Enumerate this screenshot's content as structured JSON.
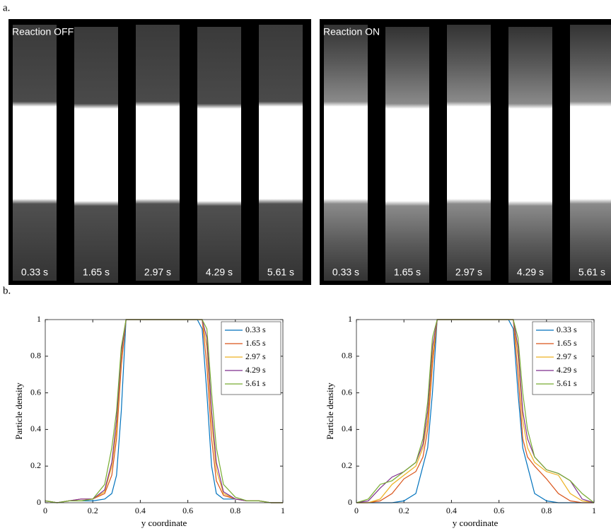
{
  "panel_labels": [
    "a.",
    "b."
  ],
  "images": [
    {
      "title": "Reaction OFF",
      "times": [
        "0.33 s",
        "1.65 s",
        "2.97 s",
        "4.29 s",
        "5.61 s"
      ]
    },
    {
      "title": "Reaction ON",
      "times": [
        "0.33 s",
        "1.65 s",
        "2.97 s",
        "4.29 s",
        "5.61 s"
      ]
    }
  ],
  "chart_data": [
    {
      "type": "line",
      "x_label": "y coordinate",
      "y_label": "Particle density",
      "xlim": [
        0,
        1
      ],
      "ylim": [
        0,
        1
      ],
      "xticks": [
        0,
        0.2,
        0.4,
        0.6,
        0.8,
        1
      ],
      "yticks": [
        0,
        0.2,
        0.4,
        0.6,
        0.8,
        1
      ],
      "legend": "upper right",
      "x": [
        0,
        0.05,
        0.1,
        0.15,
        0.2,
        0.25,
        0.28,
        0.3,
        0.32,
        0.34,
        0.36,
        0.64,
        0.66,
        0.68,
        0.7,
        0.72,
        0.75,
        0.8,
        0.85,
        0.9,
        0.95,
        1
      ],
      "series": [
        {
          "name": "0.33 s",
          "color": "#0072bd",
          "values": [
            0.01,
            0.0,
            0.01,
            0.01,
            0.01,
            0.02,
            0.05,
            0.15,
            0.5,
            1,
            1,
            1,
            0.95,
            0.6,
            0.2,
            0.05,
            0.02,
            0.02,
            0.01,
            0.01,
            0.0,
            0.0
          ]
        },
        {
          "name": "1.65 s",
          "color": "#d95319",
          "values": [
            0.01,
            0.0,
            0.01,
            0.02,
            0.02,
            0.05,
            0.15,
            0.35,
            0.75,
            1,
            1,
            1,
            1,
            0.75,
            0.35,
            0.12,
            0.04,
            0.02,
            0.01,
            0.01,
            0.0,
            0.0
          ]
        },
        {
          "name": "2.97 s",
          "color": "#edb120",
          "values": [
            0.01,
            0.0,
            0.01,
            0.01,
            0.02,
            0.06,
            0.2,
            0.4,
            0.8,
            1,
            1,
            1,
            1,
            0.85,
            0.45,
            0.18,
            0.05,
            0.02,
            0.01,
            0.01,
            0.0,
            0.0
          ]
        },
        {
          "name": "4.29 s",
          "color": "#7e2f8e",
          "values": [
            0.01,
            0.0,
            0.01,
            0.02,
            0.02,
            0.07,
            0.22,
            0.45,
            0.82,
            1,
            1,
            1,
            1,
            0.9,
            0.5,
            0.22,
            0.06,
            0.02,
            0.01,
            0.01,
            0.0,
            0.0
          ]
        },
        {
          "name": "5.61 s",
          "color": "#77ac30",
          "values": [
            0.01,
            0.0,
            0.01,
            0.01,
            0.02,
            0.1,
            0.3,
            0.5,
            0.85,
            1,
            1,
            1,
            1,
            0.95,
            0.6,
            0.3,
            0.1,
            0.03,
            0.01,
            0.01,
            0.0,
            0.0
          ]
        }
      ]
    },
    {
      "type": "line",
      "x_label": "y coordinate",
      "y_label": "Particle density",
      "xlim": [
        0,
        1
      ],
      "ylim": [
        0,
        1
      ],
      "xticks": [
        0,
        0.2,
        0.4,
        0.6,
        0.8,
        1
      ],
      "yticks": [
        0,
        0.2,
        0.4,
        0.6,
        0.8,
        1
      ],
      "legend": "upper right",
      "x": [
        0,
        0.05,
        0.1,
        0.15,
        0.2,
        0.25,
        0.28,
        0.3,
        0.32,
        0.34,
        0.36,
        0.64,
        0.66,
        0.68,
        0.7,
        0.72,
        0.75,
        0.8,
        0.85,
        0.9,
        0.95,
        1
      ],
      "series": [
        {
          "name": "0.33 s",
          "color": "#0072bd",
          "values": [
            0.0,
            0.0,
            0.0,
            0.0,
            0.01,
            0.05,
            0.2,
            0.3,
            0.6,
            1,
            1,
            1,
            0.95,
            0.6,
            0.3,
            0.2,
            0.05,
            0.01,
            0.0,
            0.0,
            0.0,
            0.0
          ]
        },
        {
          "name": "1.65 s",
          "color": "#d95319",
          "values": [
            0.0,
            0.0,
            0.01,
            0.05,
            0.13,
            0.17,
            0.25,
            0.4,
            0.75,
            1,
            1,
            1,
            1,
            0.7,
            0.35,
            0.25,
            0.2,
            0.13,
            0.05,
            0.01,
            0.0,
            0.0
          ]
        },
        {
          "name": "2.97 s",
          "color": "#edb120",
          "values": [
            0.0,
            0.0,
            0.02,
            0.1,
            0.15,
            0.2,
            0.3,
            0.45,
            0.8,
            1,
            1,
            1,
            1,
            0.8,
            0.45,
            0.3,
            0.22,
            0.17,
            0.15,
            0.05,
            0.01,
            0.0
          ]
        },
        {
          "name": "4.29 s",
          "color": "#7e2f8e",
          "values": [
            0.0,
            0.01,
            0.08,
            0.14,
            0.17,
            0.22,
            0.32,
            0.5,
            0.85,
            1,
            1,
            1,
            1,
            0.85,
            0.5,
            0.35,
            0.25,
            0.18,
            0.16,
            0.12,
            0.02,
            0.0
          ]
        },
        {
          "name": "5.61 s",
          "color": "#77ac30",
          "values": [
            0.0,
            0.02,
            0.1,
            0.12,
            0.17,
            0.22,
            0.35,
            0.55,
            0.9,
            1,
            1,
            1,
            1,
            0.9,
            0.6,
            0.4,
            0.25,
            0.18,
            0.16,
            0.12,
            0.05,
            0.0
          ]
        }
      ]
    }
  ]
}
